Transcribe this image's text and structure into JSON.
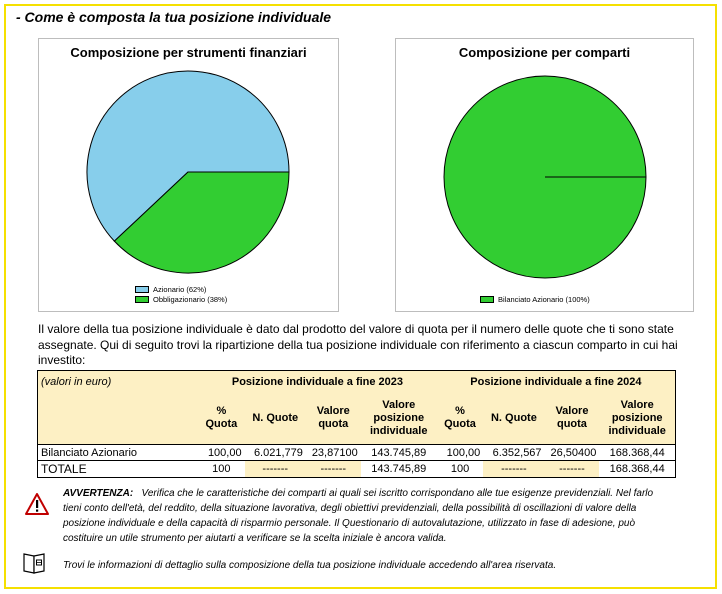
{
  "section_title": "- Come è composta la tua posizione individuale",
  "chart_data": [
    {
      "type": "pie",
      "title": "Composizione per strumenti finanziari",
      "labels": [
        "Azionario (62%)",
        "Obbligazionario (38%)"
      ],
      "values": [
        62,
        38
      ],
      "colors": [
        "#87ceeb",
        "#32cd32"
      ]
    },
    {
      "type": "pie",
      "title": "Composizione per comparti",
      "labels": [
        "Bilanciato Azionario (100%)"
      ],
      "values": [
        100
      ],
      "colors": [
        "#32cd32"
      ]
    }
  ],
  "intro_text": "Il valore della tua posizione individuale è dato dal prodotto del valore di quota per il numero delle quote che ti sono state assegnate. Qui di seguito trovi la ripartizione della tua posizione individuale con riferimento a ciascun comparto in cui hai investito:",
  "table": {
    "unit_note": "(valori in euro)",
    "group_2023": "Posizione individuale a fine 2023",
    "group_2024": "Posizione individuale a fine 2024",
    "col_pct": "% Quota",
    "col_n": "N. Quote",
    "col_val": "Valore quota",
    "col_pos": "Valore posizione individuale",
    "rows": [
      {
        "name": "Bilanciato Azionario",
        "pct_2023": "100,00",
        "n_2023": "6.021,779",
        "val_2023": "23,87100",
        "pos_2023": "143.745,89",
        "pct_2024": "100,00",
        "n_2024": "6.352,567",
        "val_2024": "26,50400",
        "pos_2024": "168.368,44"
      }
    ],
    "total": {
      "name": "TOTALE",
      "pct_2023": "100",
      "n_2023": "-------",
      "val_2023": "-------",
      "pos_2023": "143.745,89",
      "pct_2024": "100",
      "n_2024": "-------",
      "val_2024": "-------",
      "pos_2024": "168.368,44"
    }
  },
  "warning": {
    "label": "AVVERTENZA:",
    "text": "Verifica che le caratteristiche dei comparti ai quali sei iscritto corrispondano alle tue esigenze previdenziali. Nel farlo tieni conto dell'età, del reddito, della situazione lavorativa, degli obiettivi previdenziali, della possibilità di oscillazioni di valore della posizione individuale e della capacità di risparmio personale. Il Questionario di autovalutazione, utilizzato in fase di adesione, può costituire un utile strumento per aiutarti a verificare se la scelta iniziale è ancora valida."
  },
  "info_text": "Trovi le informazioni di dettaglio sulla composizione della tua posizione individuale accedendo all'area riservata.",
  "icons": {
    "warning": "warning-triangle-icon",
    "book": "book-icon"
  }
}
